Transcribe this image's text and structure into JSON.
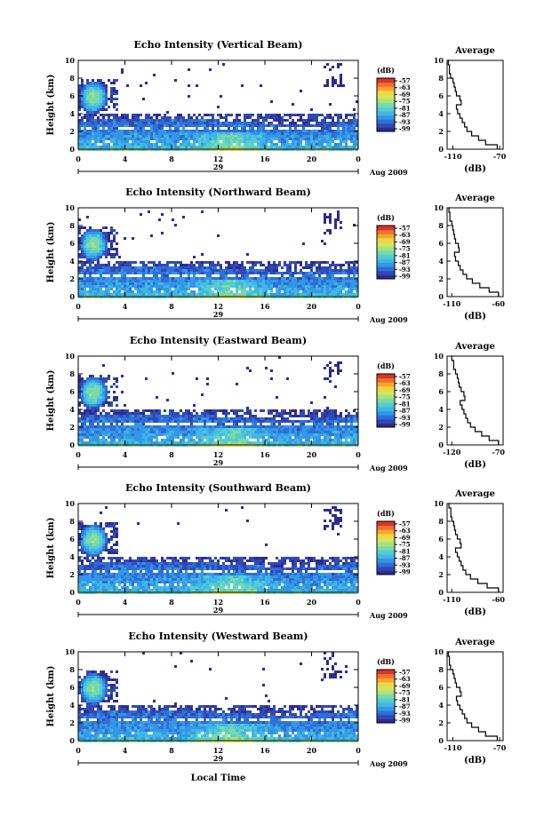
{
  "figure": {
    "xlabel": "Local Time",
    "date_label": "Aug 2009",
    "day_label": "29",
    "colorbar_unit": "(dB)",
    "avg_title": "Average",
    "avg_unit": "(dB)"
  },
  "colorbar": {
    "ticks": [
      "-57",
      "-63",
      "-69",
      "-75",
      "-81",
      "-87",
      "-93",
      "-99"
    ],
    "colors": [
      "#2e2b8f",
      "#3049b5",
      "#2f6fd6",
      "#3497e6",
      "#3fb7e6",
      "#55cdd0",
      "#7ad9a8",
      "#a7e27d",
      "#d3e65a",
      "#f4d43e",
      "#f7a531",
      "#f0702a",
      "#d9342a"
    ]
  },
  "chart_data": [
    {
      "type": "heatmap",
      "title": "Echo Intensity (Vertical Beam)",
      "ylabel": "Height (km)",
      "xlim": [
        0,
        24
      ],
      "ylim": [
        0,
        10
      ],
      "x_ticks": [
        "0",
        "4",
        "8",
        "12",
        "16",
        "20",
        "0"
      ],
      "y_ticks": [
        "0",
        "2",
        "4",
        "6",
        "8",
        "10"
      ],
      "colorbar_range_db": [
        -99,
        -57
      ],
      "average_profile": {
        "xlim": [
          -115,
          -67
        ],
        "x_ticks": [
          "-110",
          "-70"
        ],
        "y_ticks": [
          "0",
          "2",
          "4",
          "6",
          "8",
          "10"
        ],
        "height_km": [
          0,
          0.5,
          1,
          1.5,
          2,
          2.5,
          3,
          3.5,
          4,
          4.5,
          5,
          5.5,
          6,
          6.5,
          7,
          7.5,
          8,
          8.5,
          9,
          9.5,
          10
        ],
        "db": [
          -72,
          -82,
          -88,
          -94,
          -98,
          -100,
          -102,
          -104,
          -106,
          -107,
          -103,
          -104,
          -107,
          -108,
          -109,
          -110,
          -112,
          -113,
          -113,
          -114,
          -113
        ]
      }
    },
    {
      "type": "heatmap",
      "title": "Echo Intensity (Northward Beam)",
      "ylabel": "Height (km)",
      "xlim": [
        0,
        24
      ],
      "ylim": [
        0,
        10
      ],
      "x_ticks": [
        "0",
        "4",
        "8",
        "12",
        "16",
        "20",
        "0"
      ],
      "y_ticks": [
        "0",
        "2",
        "4",
        "6",
        "8",
        "10"
      ],
      "colorbar_range_db": [
        -99,
        -57
      ],
      "average_profile": {
        "xlim": [
          -115,
          -55
        ],
        "x_ticks": [
          "-110",
          "-60"
        ],
        "y_ticks": [
          "0",
          "2",
          "4",
          "6",
          "8",
          "10"
        ],
        "height_km": [
          0,
          0.5,
          1,
          1.5,
          2,
          2.5,
          3,
          3.5,
          4,
          4.5,
          5,
          5.5,
          6,
          6.5,
          7,
          7.5,
          8,
          8.5,
          9,
          9.5,
          10
        ],
        "db": [
          -60,
          -70,
          -80,
          -88,
          -94,
          -98,
          -101,
          -103,
          -106,
          -107,
          -102,
          -103,
          -106,
          -107,
          -108,
          -109,
          -110,
          -112,
          -112,
          -113,
          -112
        ]
      }
    },
    {
      "type": "heatmap",
      "title": "Echo Intensity (Eastward Beam)",
      "ylabel": "Height (km)",
      "xlim": [
        0,
        24
      ],
      "ylim": [
        0,
        10
      ],
      "x_ticks": [
        "0",
        "4",
        "8",
        "12",
        "16",
        "20",
        "0"
      ],
      "y_ticks": [
        "0",
        "2",
        "4",
        "6",
        "8",
        "10"
      ],
      "colorbar_range_db": [
        -99,
        -57
      ],
      "average_profile": {
        "xlim": [
          -125,
          -65
        ],
        "x_ticks": [
          "-120",
          "-70"
        ],
        "y_ticks": [
          "0",
          "2",
          "4",
          "6",
          "8",
          "10"
        ],
        "height_km": [
          0,
          0.5,
          1,
          1.5,
          2,
          2.5,
          3,
          3.5,
          4,
          4.5,
          5,
          5.5,
          6,
          6.5,
          7,
          7.5,
          8,
          8.5,
          9,
          9.5,
          10
        ],
        "db": [
          -70,
          -80,
          -88,
          -95,
          -100,
          -103,
          -105,
          -107,
          -109,
          -111,
          -106,
          -107,
          -110,
          -112,
          -113,
          -114,
          -116,
          -118,
          -118,
          -120,
          -119
        ]
      }
    },
    {
      "type": "heatmap",
      "title": "Echo Intensity (Southward Beam)",
      "ylabel": "Height (km)",
      "xlim": [
        0,
        24
      ],
      "ylim": [
        0,
        10
      ],
      "x_ticks": [
        "0",
        "4",
        "8",
        "12",
        "16",
        "20",
        "0"
      ],
      "y_ticks": [
        "0",
        "2",
        "4",
        "6",
        "8",
        "10"
      ],
      "colorbar_range_db": [
        -99,
        -57
      ],
      "average_profile": {
        "xlim": [
          -115,
          -55
        ],
        "x_ticks": [
          "-110",
          "-60"
        ],
        "y_ticks": [
          "0",
          "2",
          "4",
          "6",
          "8",
          "10"
        ],
        "height_km": [
          0,
          0.5,
          1,
          1.5,
          2,
          2.5,
          3,
          3.5,
          4,
          4.5,
          5,
          5.5,
          6,
          6.5,
          7,
          7.5,
          8,
          8.5,
          9,
          9.5,
          10
        ],
        "db": [
          -60,
          -72,
          -82,
          -90,
          -95,
          -98,
          -100,
          -102,
          -104,
          -106,
          -100,
          -101,
          -104,
          -106,
          -107,
          -108,
          -110,
          -111,
          -111,
          -113,
          -112
        ]
      }
    },
    {
      "type": "heatmap",
      "title": "Echo Intensity (Westward Beam)",
      "ylabel": "Height (km)",
      "xlim": [
        0,
        24
      ],
      "ylim": [
        0,
        10
      ],
      "x_ticks": [
        "0",
        "4",
        "8",
        "12",
        "16",
        "20",
        "0"
      ],
      "y_ticks": [
        "0",
        "2",
        "4",
        "6",
        "8",
        "10"
      ],
      "colorbar_range_db": [
        -99,
        -57
      ],
      "average_profile": {
        "xlim": [
          -115,
          -67
        ],
        "x_ticks": [
          "-110",
          "-70"
        ],
        "y_ticks": [
          "0",
          "2",
          "4",
          "6",
          "8",
          "10"
        ],
        "height_km": [
          0,
          0.5,
          1,
          1.5,
          2,
          2.5,
          3,
          3.5,
          4,
          4.5,
          5,
          5.5,
          6,
          6.5,
          7,
          7.5,
          8,
          8.5,
          9,
          9.5,
          10
        ],
        "db": [
          -72,
          -82,
          -88,
          -94,
          -98,
          -100,
          -102,
          -104,
          -106,
          -107,
          -103,
          -104,
          -107,
          -108,
          -109,
          -110,
          -112,
          -113,
          -113,
          -114,
          -113
        ]
      }
    }
  ]
}
